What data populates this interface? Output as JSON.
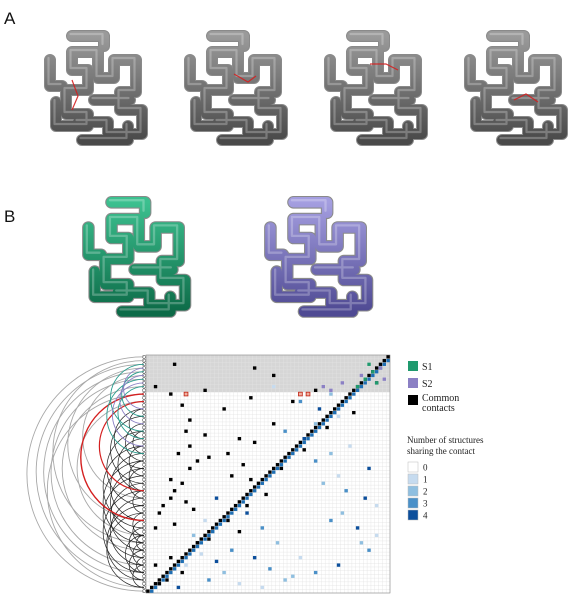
{
  "panels": {
    "a_label": "A",
    "b_label": "B"
  },
  "legend_structures": [
    {
      "label": "S1",
      "color": "#1f9a6e"
    },
    {
      "label": "S2",
      "color": "#8b80c4"
    },
    {
      "label": "Common contacts",
      "label_line1": "Common",
      "label_line2": "contacts",
      "color": "#000000"
    }
  ],
  "legend_count": {
    "title_line1": "Number of structures",
    "title_line2": "sharing the contact",
    "items": [
      {
        "label": "0",
        "color": "#ffffff"
      },
      {
        "label": "1",
        "color": "#c6dbef"
      },
      {
        "label": "2",
        "color": "#8fbfe0"
      },
      {
        "label": "3",
        "color": "#4a90c8"
      },
      {
        "label": "4",
        "color": "#0c4f9c"
      }
    ]
  },
  "colors": {
    "gray_tube": "#6f6f6f",
    "s1_tube": "#1f9a6e",
    "s2_tube": "#7c76bf",
    "highlight_red": "#d42020",
    "top_band": "#d6d6d6",
    "diag_black": "#000000",
    "diag_blue": "#1f6fb4"
  },
  "contact_map": {
    "size": 64,
    "shaded_rows": 10,
    "black_cells": [
      [
        2,
        7
      ],
      [
        3,
        28
      ],
      [
        5,
        33
      ],
      [
        7,
        60
      ],
      [
        8,
        2
      ],
      [
        9,
        15
      ],
      [
        10,
        6
      ],
      [
        11,
        27
      ],
      [
        13,
        9
      ],
      [
        14,
        20
      ],
      [
        17,
        11
      ],
      [
        18,
        33
      ],
      [
        20,
        10
      ],
      [
        21,
        15
      ],
      [
        22,
        24
      ],
      [
        23,
        28
      ],
      [
        24,
        11
      ],
      [
        26,
        8
      ],
      [
        26,
        21
      ],
      [
        27,
        16
      ],
      [
        28,
        13
      ],
      [
        29,
        25
      ],
      [
        30,
        11
      ],
      [
        30,
        35
      ],
      [
        32,
        22
      ],
      [
        33,
        6
      ],
      [
        33,
        27
      ],
      [
        34,
        9
      ],
      [
        36,
        7
      ],
      [
        37,
        31
      ],
      [
        38,
        6
      ],
      [
        39,
        10
      ],
      [
        40,
        4
      ],
      [
        40,
        26
      ],
      [
        41,
        12
      ],
      [
        42,
        3
      ],
      [
        44,
        21
      ],
      [
        45,
        7
      ],
      [
        46,
        2
      ],
      [
        47,
        24
      ],
      [
        49,
        16
      ],
      [
        50,
        13
      ],
      [
        54,
        6
      ],
      [
        56,
        2
      ],
      [
        58,
        9
      ],
      [
        60,
        5
      ],
      [
        61,
        3
      ],
      [
        9,
        44
      ],
      [
        12,
        38
      ],
      [
        15,
        54
      ],
      [
        19,
        47
      ],
      [
        25,
        41
      ]
    ],
    "s1_cells": [
      [
        2,
        58
      ],
      [
        4,
        59
      ],
      [
        6,
        57
      ],
      [
        8,
        55
      ],
      [
        7,
        60
      ]
    ],
    "s2_cells": [
      [
        5,
        56
      ],
      [
        7,
        51
      ],
      [
        8,
        46
      ],
      [
        9,
        48
      ],
      [
        3,
        61
      ],
      [
        6,
        62
      ]
    ],
    "red_cells": [
      [
        10,
        10
      ],
      [
        10,
        40
      ],
      [
        10,
        42
      ]
    ],
    "blue_cells": [
      [
        8,
        33
      ],
      [
        10,
        48
      ],
      [
        12,
        40
      ],
      [
        14,
        45
      ],
      [
        16,
        50
      ],
      [
        18,
        44
      ],
      [
        20,
        36
      ],
      [
        22,
        41
      ],
      [
        24,
        53
      ],
      [
        26,
        48
      ],
      [
        28,
        44
      ],
      [
        30,
        58
      ],
      [
        32,
        50
      ],
      [
        34,
        46
      ],
      [
        36,
        52
      ],
      [
        38,
        57
      ],
      [
        40,
        60
      ],
      [
        42,
        51
      ],
      [
        44,
        48
      ],
      [
        46,
        55
      ],
      [
        48,
        60
      ],
      [
        50,
        56
      ],
      [
        52,
        58
      ],
      [
        38,
        18
      ],
      [
        44,
        15
      ],
      [
        48,
        12
      ],
      [
        52,
        22
      ],
      [
        54,
        28
      ],
      [
        56,
        10
      ],
      [
        58,
        20
      ],
      [
        60,
        16
      ],
      [
        62,
        8
      ],
      [
        62,
        30
      ],
      [
        60,
        36
      ],
      [
        58,
        44
      ],
      [
        56,
        50
      ],
      [
        54,
        40
      ],
      [
        50,
        34
      ],
      [
        46,
        30
      ],
      [
        42,
        26
      ],
      [
        61,
        24
      ],
      [
        59,
        38
      ],
      [
        57,
        32
      ],
      [
        55,
        18
      ],
      [
        53,
        14
      ]
    ]
  }
}
